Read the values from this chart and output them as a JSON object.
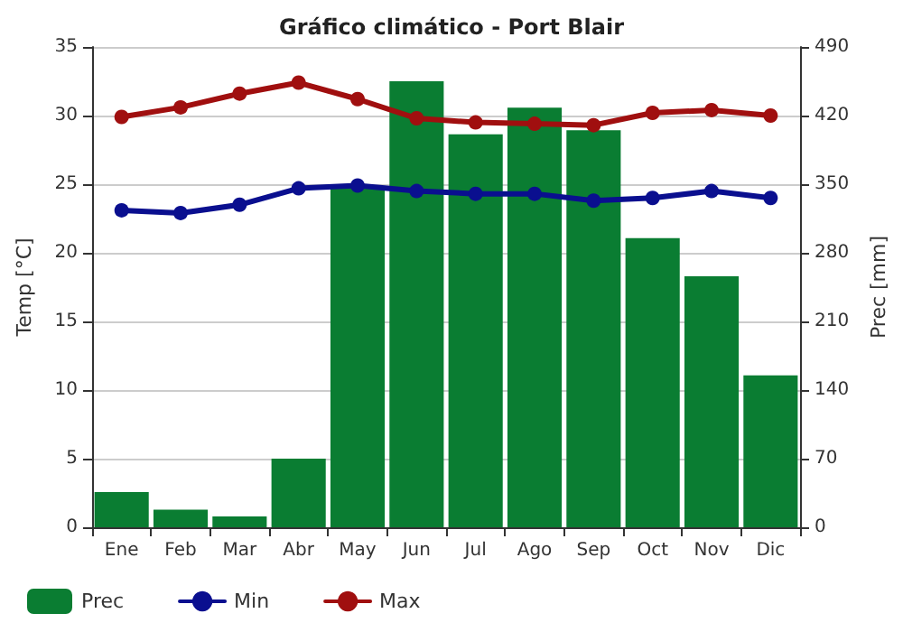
{
  "chart_data": {
    "type": "bar",
    "title": "Gráfico climático - Port Blair",
    "ylabel": "Temp [°C]",
    "y2label": "Prec [mm]",
    "categories": [
      "Ene",
      "Feb",
      "Mar",
      "Abr",
      "May",
      "Jun",
      "Jul",
      "Ago",
      "Sep",
      "Oct",
      "Nov",
      "Dic"
    ],
    "series": [
      {
        "name": "Prec",
        "axis": "y2",
        "color": "#0a7d32",
        "values": [
          36,
          18,
          11,
          70,
          347,
          455,
          401,
          428,
          405,
          295,
          256,
          155
        ]
      },
      {
        "name": "Min",
        "type": "line",
        "color": "#0a0f8f",
        "values": [
          23.1,
          22.9,
          23.5,
          24.7,
          24.9,
          24.5,
          24.3,
          24.3,
          23.8,
          24.0,
          24.5,
          24.0
        ]
      },
      {
        "name": "Max",
        "type": "line",
        "color": "#a00f0f",
        "values": [
          29.9,
          30.6,
          31.6,
          32.4,
          31.2,
          29.8,
          29.5,
          29.4,
          29.3,
          30.2,
          30.4,
          30.0
        ]
      }
    ],
    "ylim": [
      0,
      35
    ],
    "yticks": [
      0,
      5,
      10,
      15,
      20,
      25,
      30,
      35
    ],
    "y2lim": [
      0,
      490
    ],
    "y2ticks": [
      0,
      70,
      140,
      210,
      280,
      350,
      420,
      490
    ],
    "grid": "y",
    "legend": "bottom left",
    "marker": "circle",
    "line_style": "solid"
  }
}
